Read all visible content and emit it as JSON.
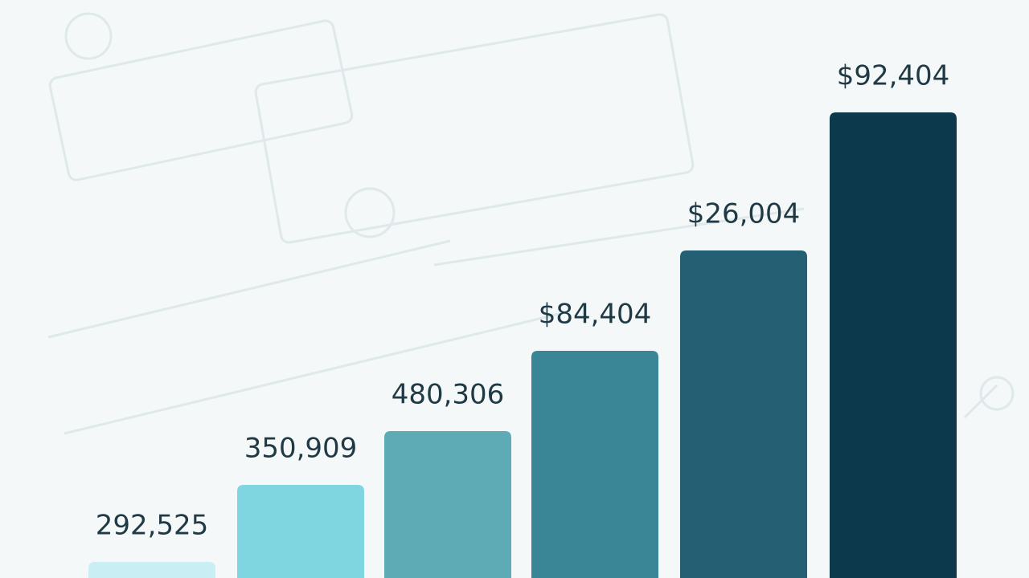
{
  "chart_data": {
    "type": "bar",
    "annotations": [
      "292,525",
      "350,909",
      "480,306",
      "$84,404",
      "$26,004",
      "$92,404"
    ],
    "values": [
      20,
      116,
      183,
      283,
      408,
      580
    ],
    "colors": [
      "#c9eef3",
      "#7fd6e0",
      "#5eaab5",
      "#3a8596",
      "#245f73",
      "#0c3a4c"
    ],
    "ylim": [
      0,
      600
    ]
  }
}
